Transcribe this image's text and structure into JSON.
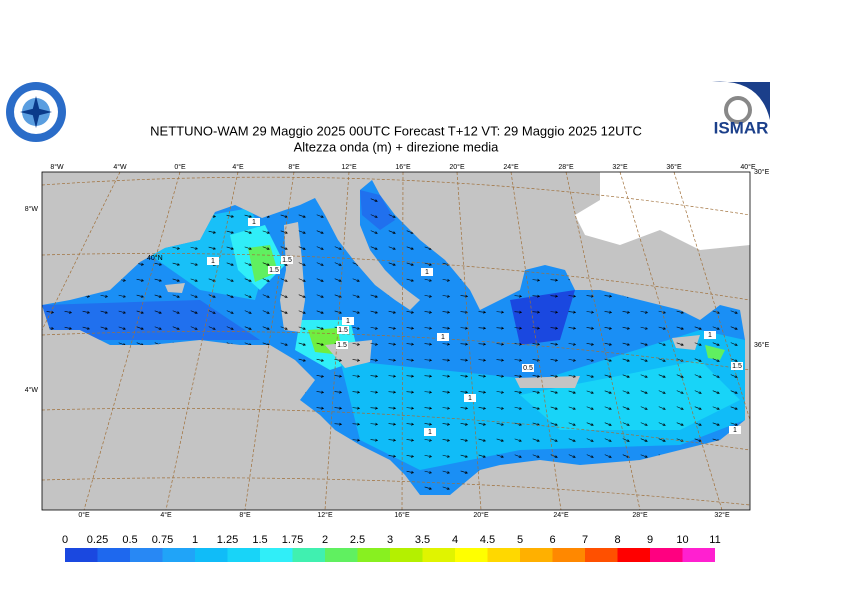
{
  "header": {
    "title": "NETTUNO-WAM  29   Maggio  2025 00UTC Forecast T+12 VT: 29   Maggio  2025 12UTC",
    "subtitle": "Altezza onda (m) + direzione media",
    "logo_right": "ISMAR"
  },
  "map": {
    "top_labels": [
      "8°W",
      "4°W",
      "0°E",
      "4°E",
      "8°E",
      "12°E",
      "16°E",
      "20°E",
      "24°E",
      "28°E",
      "32°E",
      "36°E",
      "40°E"
    ],
    "bottom_labels": [
      "0°E",
      "4°E",
      "8°E",
      "12°E",
      "16°E",
      "20°E",
      "24°E",
      "28°E",
      "32°E"
    ],
    "left_labels": [
      "8°W",
      "4°W"
    ],
    "right_labels": [
      "30°E",
      "36°E"
    ],
    "inner_labels": [
      "40°N"
    ],
    "contour_labels": [
      "1",
      "1",
      "1.5",
      "1.5",
      "1",
      "1",
      "1",
      "1.5",
      "1.5",
      "0.5",
      "1",
      "1",
      "1",
      "1.5",
      "1"
    ]
  },
  "colorbar": {
    "labels": [
      "0",
      "0.25",
      "0.5",
      "0.75",
      "1",
      "1.25",
      "1.5",
      "1.75",
      "2",
      "2.5",
      "3",
      "3.5",
      "4",
      "4.5",
      "5",
      "6",
      "7",
      "8",
      "9",
      "10",
      "11"
    ],
    "colors": [
      "#1a48e0",
      "#1e68ee",
      "#2888f4",
      "#20a4f8",
      "#10bcf8",
      "#18d4f8",
      "#30eef8",
      "#40f0b0",
      "#60f060",
      "#88f020",
      "#b4f000",
      "#e0f400",
      "#ffff00",
      "#ffd800",
      "#ffb000",
      "#ff8800",
      "#ff5000",
      "#ff0000",
      "#ff0080",
      "#ff20d0"
    ]
  }
}
